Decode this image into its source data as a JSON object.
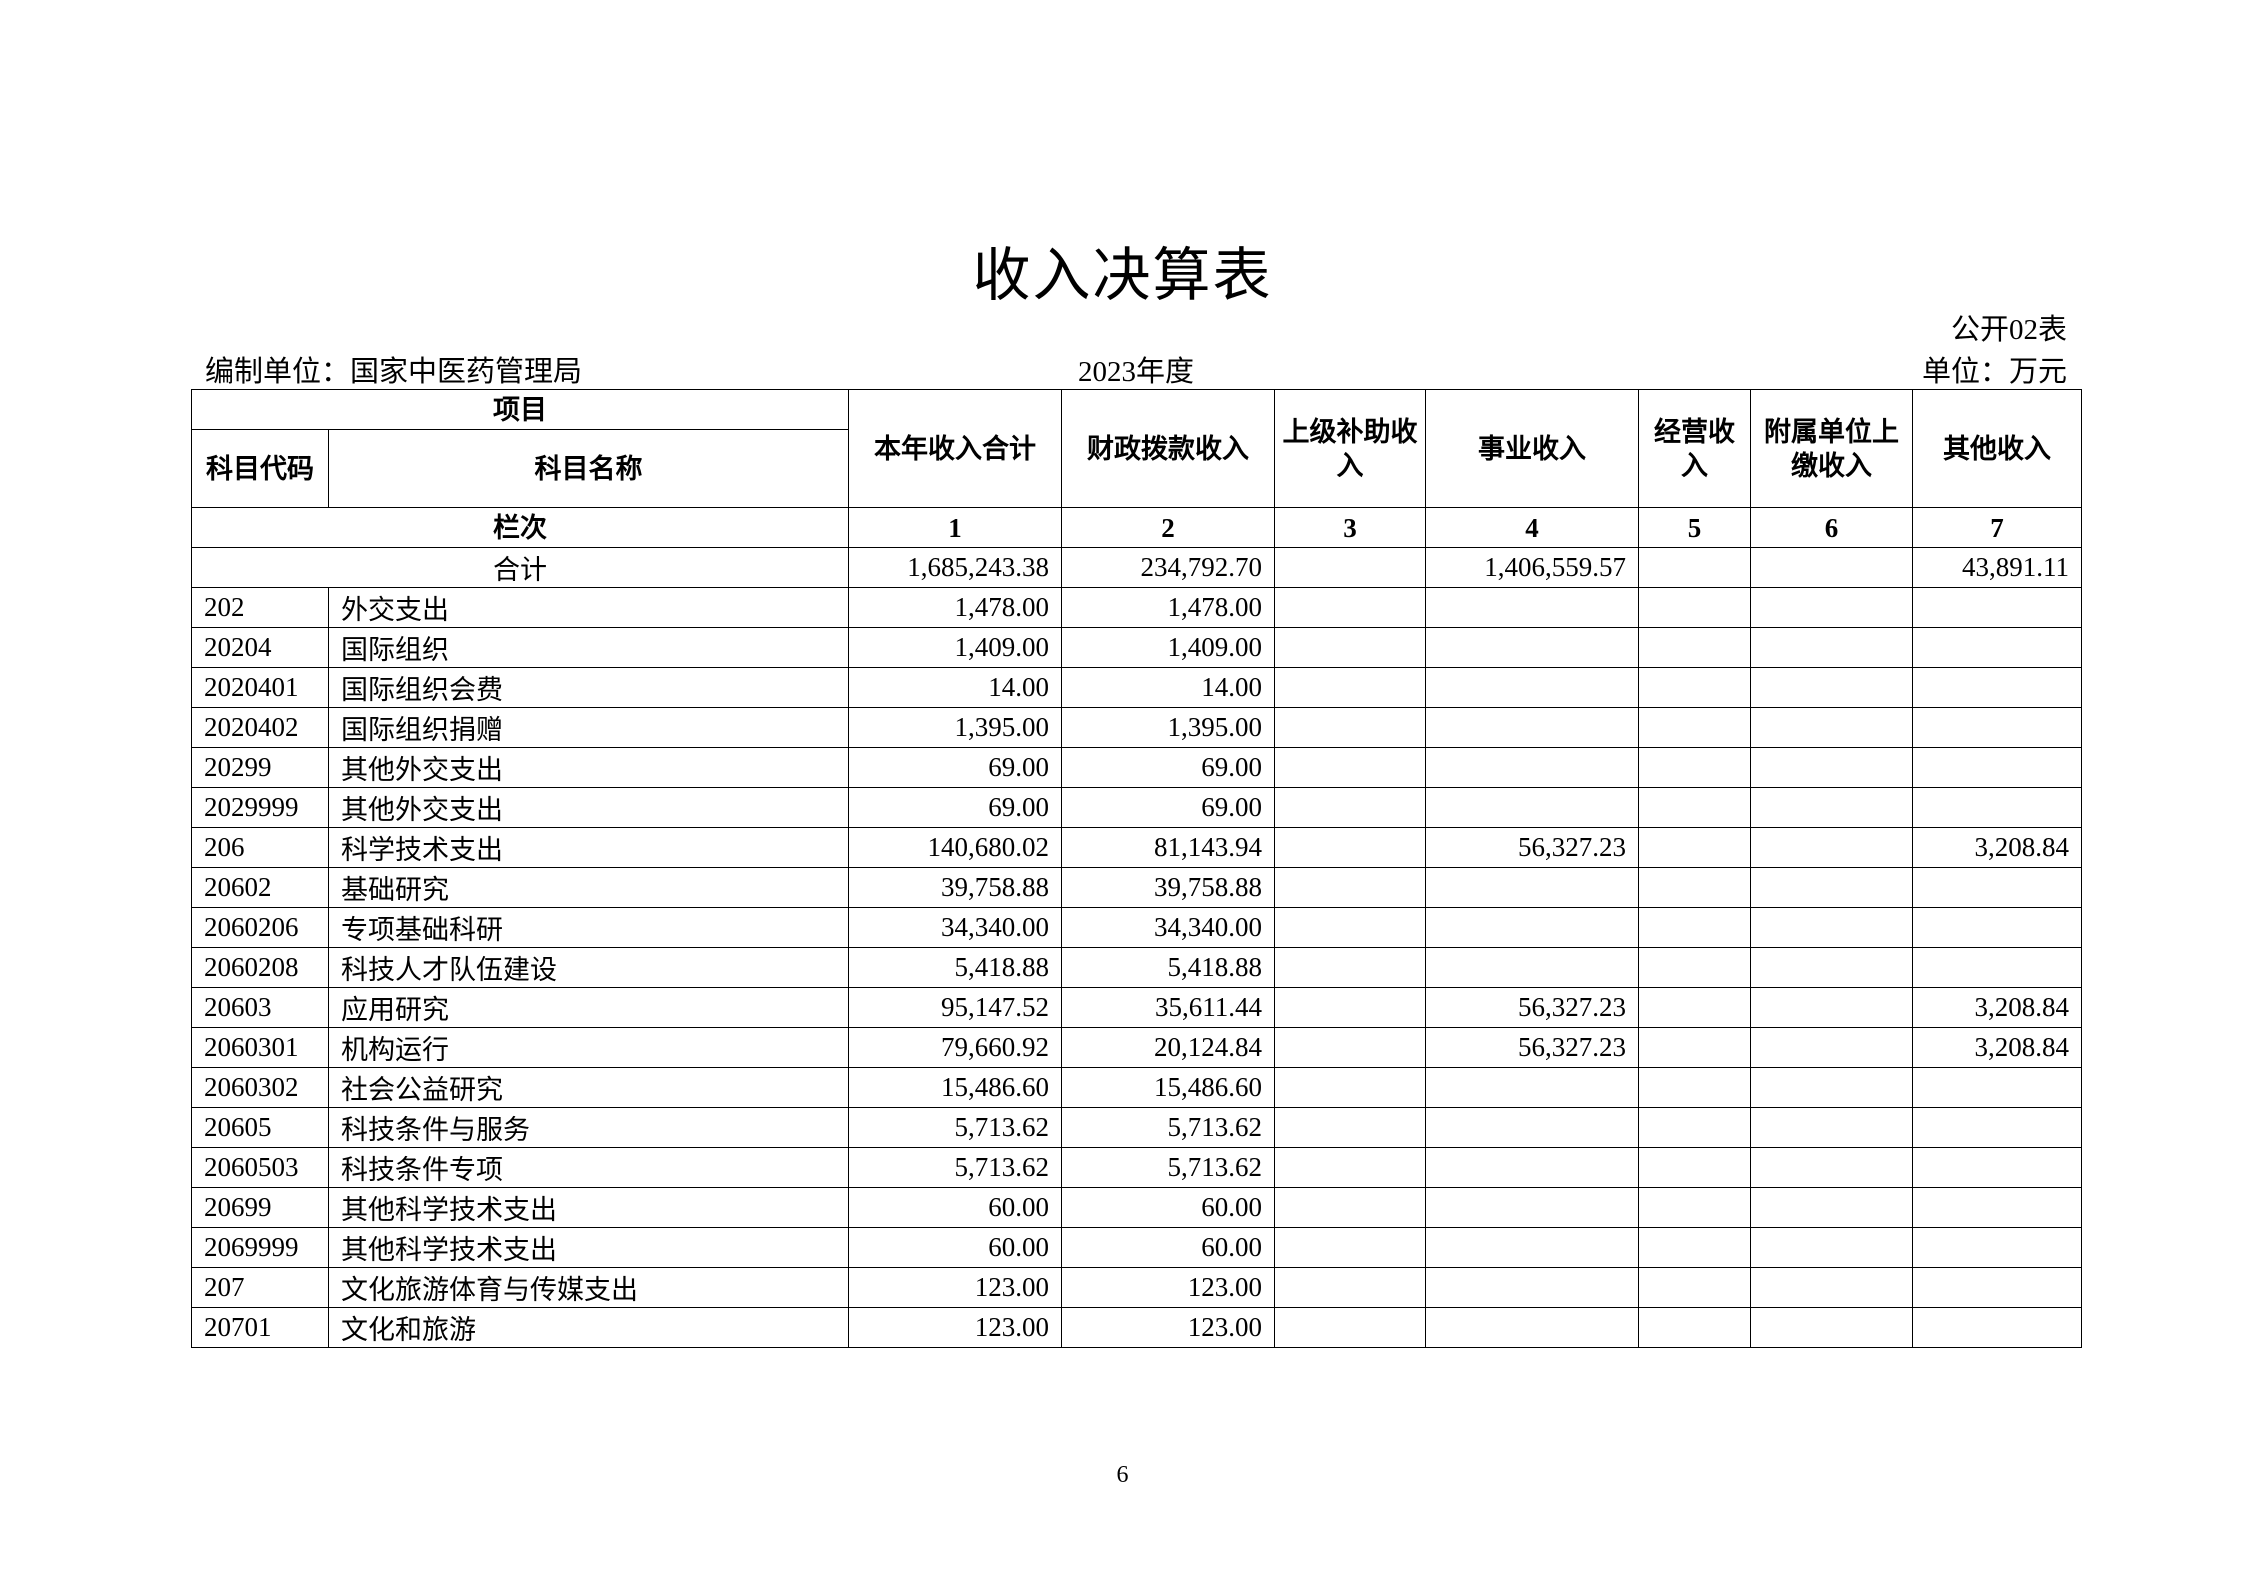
{
  "title": "收入决算表",
  "table_no": "公开02表",
  "org_label": "编制单位：国家中医药管理局",
  "year_label": "2023年度",
  "unit_label": "单位：万元",
  "header": {
    "item": "项目",
    "code": "科目代码",
    "name": "科目名称",
    "columns": [
      "本年收入合计",
      "财政拨款收入",
      "上级补助收入",
      "事业收入",
      "经营收入",
      "附属单位上缴收入",
      "其他收入"
    ],
    "row_index_label": "栏次",
    "column_numbers": [
      "1",
      "2",
      "3",
      "4",
      "5",
      "6",
      "7"
    ]
  },
  "total": {
    "label": "合计",
    "values": [
      "1,685,243.38",
      "234,792.70",
      "",
      "1,406,559.57",
      "",
      "",
      "43,891.11"
    ]
  },
  "rows": [
    {
      "code": "202",
      "name": "外交支出",
      "values": [
        "1,478.00",
        "1,478.00",
        "",
        "",
        "",
        "",
        ""
      ]
    },
    {
      "code": "20204",
      "name": "国际组织",
      "values": [
        "1,409.00",
        "1,409.00",
        "",
        "",
        "",
        "",
        ""
      ]
    },
    {
      "code": "2020401",
      "name": "国际组织会费",
      "values": [
        "14.00",
        "14.00",
        "",
        "",
        "",
        "",
        ""
      ]
    },
    {
      "code": "2020402",
      "name": "国际组织捐赠",
      "values": [
        "1,395.00",
        "1,395.00",
        "",
        "",
        "",
        "",
        ""
      ]
    },
    {
      "code": "20299",
      "name": "其他外交支出",
      "values": [
        "69.00",
        "69.00",
        "",
        "",
        "",
        "",
        ""
      ]
    },
    {
      "code": "2029999",
      "name": "其他外交支出",
      "values": [
        "69.00",
        "69.00",
        "",
        "",
        "",
        "",
        ""
      ]
    },
    {
      "code": "206",
      "name": "科学技术支出",
      "values": [
        "140,680.02",
        "81,143.94",
        "",
        "56,327.23",
        "",
        "",
        "3,208.84"
      ]
    },
    {
      "code": "20602",
      "name": "基础研究",
      "values": [
        "39,758.88",
        "39,758.88",
        "",
        "",
        "",
        "",
        ""
      ]
    },
    {
      "code": "2060206",
      "name": "专项基础科研",
      "values": [
        "34,340.00",
        "34,340.00",
        "",
        "",
        "",
        "",
        ""
      ]
    },
    {
      "code": "2060208",
      "name": "科技人才队伍建设",
      "values": [
        "5,418.88",
        "5,418.88",
        "",
        "",
        "",
        "",
        ""
      ]
    },
    {
      "code": "20603",
      "name": "应用研究",
      "values": [
        "95,147.52",
        "35,611.44",
        "",
        "56,327.23",
        "",
        "",
        "3,208.84"
      ]
    },
    {
      "code": "2060301",
      "name": "机构运行",
      "values": [
        "79,660.92",
        "20,124.84",
        "",
        "56,327.23",
        "",
        "",
        "3,208.84"
      ]
    },
    {
      "code": "2060302",
      "name": "社会公益研究",
      "values": [
        "15,486.60",
        "15,486.60",
        "",
        "",
        "",
        "",
        ""
      ]
    },
    {
      "code": "20605",
      "name": "科技条件与服务",
      "values": [
        "5,713.62",
        "5,713.62",
        "",
        "",
        "",
        "",
        ""
      ]
    },
    {
      "code": "2060503",
      "name": "科技条件专项",
      "values": [
        "5,713.62",
        "5,713.62",
        "",
        "",
        "",
        "",
        ""
      ]
    },
    {
      "code": "20699",
      "name": "其他科学技术支出",
      "values": [
        "60.00",
        "60.00",
        "",
        "",
        "",
        "",
        ""
      ]
    },
    {
      "code": "2069999",
      "name": "其他科学技术支出",
      "values": [
        "60.00",
        "60.00",
        "",
        "",
        "",
        "",
        ""
      ]
    },
    {
      "code": "207",
      "name": "文化旅游体育与传媒支出",
      "values": [
        "123.00",
        "123.00",
        "",
        "",
        "",
        "",
        ""
      ]
    },
    {
      "code": "20701",
      "name": "文化和旅游",
      "values": [
        "123.00",
        "123.00",
        "",
        "",
        "",
        "",
        ""
      ]
    }
  ],
  "page_number": "6"
}
